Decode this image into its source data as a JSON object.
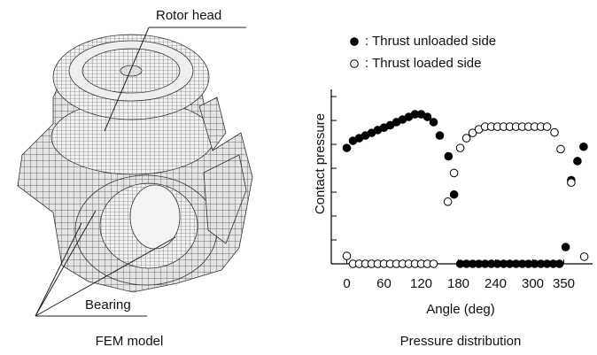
{
  "fem_model": {
    "labels": {
      "rotor_head": "Rotor head",
      "bearing": "Bearing"
    },
    "caption": "FEM model"
  },
  "chart_data": {
    "type": "scatter",
    "caption": "Pressure distribution",
    "x_label": "Angle (deg)",
    "y_label": "Contact pressure",
    "xlim": [
      -25,
      385
    ],
    "ylim": [
      0,
      7.3
    ],
    "xticks": [
      0,
      60,
      120,
      180,
      240,
      300,
      350
    ],
    "yticks": [
      0,
      1,
      2,
      3,
      4,
      5,
      6,
      7
    ],
    "series": [
      {
        "name": ": Thrust unloaded side",
        "marker": "filled",
        "color": "#000000",
        "x": [
          0,
          10,
          20,
          30,
          40,
          50,
          60,
          70,
          80,
          90,
          100,
          110,
          120,
          130,
          140,
          150,
          164,
          173,
          183,
          193,
          203,
          213,
          223,
          233,
          243,
          253,
          263,
          273,
          283,
          293,
          303,
          313,
          323,
          333,
          343,
          353,
          362,
          372,
          382
        ],
        "values": [
          4.85,
          5.15,
          5.26,
          5.37,
          5.48,
          5.6,
          5.7,
          5.8,
          5.93,
          6.04,
          6.15,
          6.26,
          6.26,
          6.15,
          5.93,
          5.37,
          4.5,
          2.9,
          0,
          0,
          0,
          0,
          0,
          0,
          0,
          0,
          0,
          0,
          0,
          0,
          0,
          0,
          0,
          0,
          0,
          0.7,
          3.5,
          4.3,
          4.9
        ]
      },
      {
        "name": ": Thrust loaded side",
        "marker": "open",
        "color": "#000000",
        "x": [
          0,
          10,
          20,
          30,
          40,
          50,
          60,
          70,
          80,
          90,
          100,
          110,
          120,
          130,
          140,
          163,
          173,
          183,
          193,
          203,
          213,
          223,
          233,
          243,
          253,
          263,
          273,
          283,
          293,
          303,
          313,
          323,
          335,
          345,
          362,
          383
        ],
        "values": [
          0.33,
          0,
          0,
          0,
          0,
          0,
          0,
          0,
          0,
          0,
          0,
          0,
          0,
          0,
          0,
          2.6,
          3.8,
          4.85,
          5.26,
          5.48,
          5.63,
          5.74,
          5.74,
          5.74,
          5.74,
          5.74,
          5.74,
          5.74,
          5.74,
          5.74,
          5.74,
          5.74,
          5.5,
          4.8,
          3.4,
          0.3
        ]
      }
    ]
  }
}
